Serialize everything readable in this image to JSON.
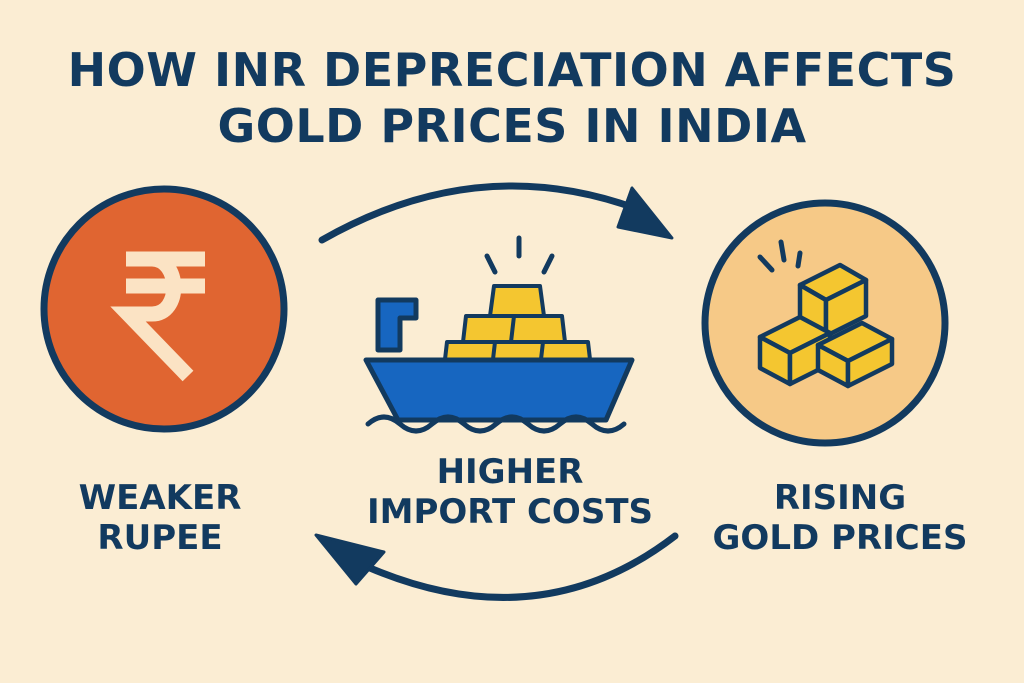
{
  "title": {
    "line1": "HOW INR DEPRECIATION AFFECTS",
    "line2": "GOLD PRICES IN INDIA"
  },
  "nodes": {
    "rupee": {
      "line1": "WEAKER",
      "line2": "RUPEE",
      "icon": "rupee-icon"
    },
    "import": {
      "line1": "HIGHER",
      "line2": "IMPORT COSTS",
      "icon": "cargo-ship-icon"
    },
    "gold": {
      "line1": "RISING",
      "line2": "GOLD PRICES",
      "icon": "gold-bars-icon"
    }
  },
  "colors": {
    "background": "#fbedd3",
    "navy": "#123a5f",
    "rupee_circle": "#e06531",
    "gold_circle": "#f6c987",
    "gold": "#f4c630",
    "ship": "#1766c0"
  }
}
